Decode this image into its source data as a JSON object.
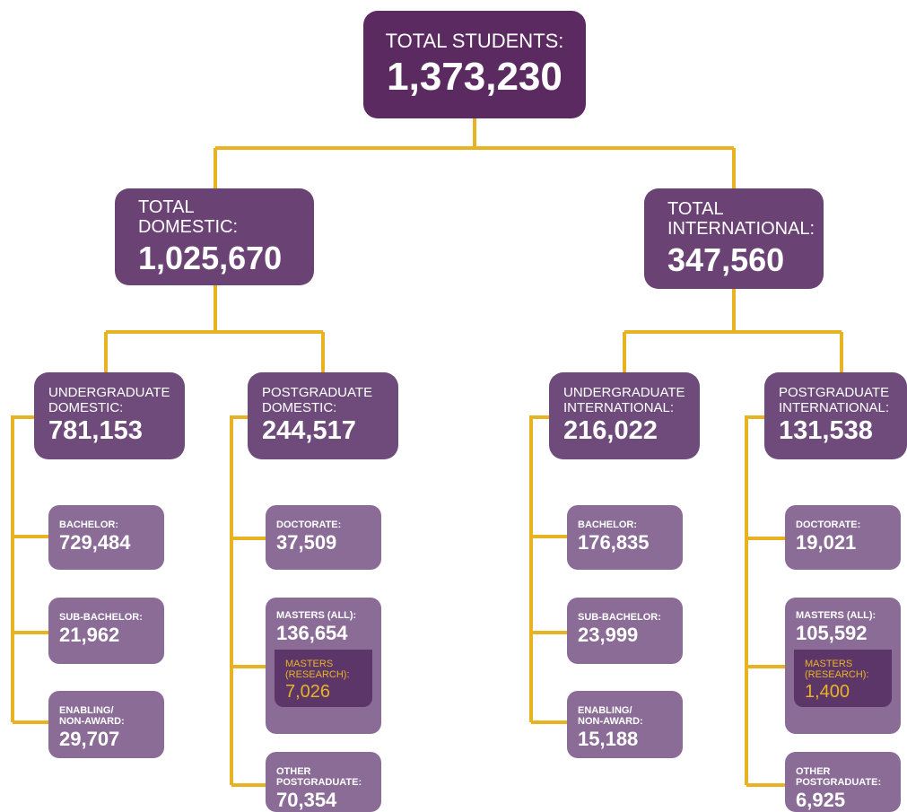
{
  "nodes": [
    {
      "label": [
        "TOTAL STUDENTS:"
      ],
      "value": "1,373,230"
    },
    {
      "label": [
        "TOTAL",
        "DOMESTIC:"
      ],
      "value": "1,025,670"
    },
    {
      "label": [
        "TOTAL",
        "INTERNATIONAL:"
      ],
      "value": "347,560"
    },
    {
      "label": [
        "UNDERGRADUATE",
        "DOMESTIC:"
      ],
      "value": "781,153"
    },
    {
      "label": [
        "POSTGRADUATE",
        "DOMESTIC:"
      ],
      "value": "244,517"
    },
    {
      "label": [
        "UNDERGRADUATE",
        "INTERNATIONAL:"
      ],
      "value": "216,022"
    },
    {
      "label": [
        "POSTGRADUATE",
        "INTERNATIONAL:"
      ],
      "value": "131,538"
    },
    {
      "label": [
        "BACHELOR:"
      ],
      "value": "729,484"
    },
    {
      "label": [
        "SUB-BACHELOR:"
      ],
      "value": "21,962"
    },
    {
      "label": [
        "ENABLING/",
        "NON-AWARD:"
      ],
      "value": "29,707"
    },
    {
      "label": [
        "DOCTORATE:"
      ],
      "value": "37,509"
    },
    {
      "label": [
        "MASTERS (ALL):"
      ],
      "value": "136,654",
      "sub": {
        "label": [
          "MASTERS",
          "(RESEARCH):"
        ],
        "value": "7,026"
      }
    },
    {
      "label": [
        "OTHER",
        "POSTGRADUATE:"
      ],
      "value": "70,354"
    },
    {
      "label": [
        "BACHELOR:"
      ],
      "value": "176,835"
    },
    {
      "label": [
        "SUB-BACHELOR:"
      ],
      "value": "23,999"
    },
    {
      "label": [
        "ENABLING/",
        "NON-AWARD:"
      ],
      "value": "15,188"
    },
    {
      "label": [
        "DOCTORATE:"
      ],
      "value": "19,021"
    },
    {
      "label": [
        "MASTERS (ALL):"
      ],
      "value": "105,592",
      "sub": {
        "label": [
          "MASTERS",
          "(RESEARCH):"
        ],
        "value": "1,400"
      }
    },
    {
      "label": [
        "OTHER",
        "POSTGRADUATE:"
      ],
      "value": "6,925"
    }
  ]
}
